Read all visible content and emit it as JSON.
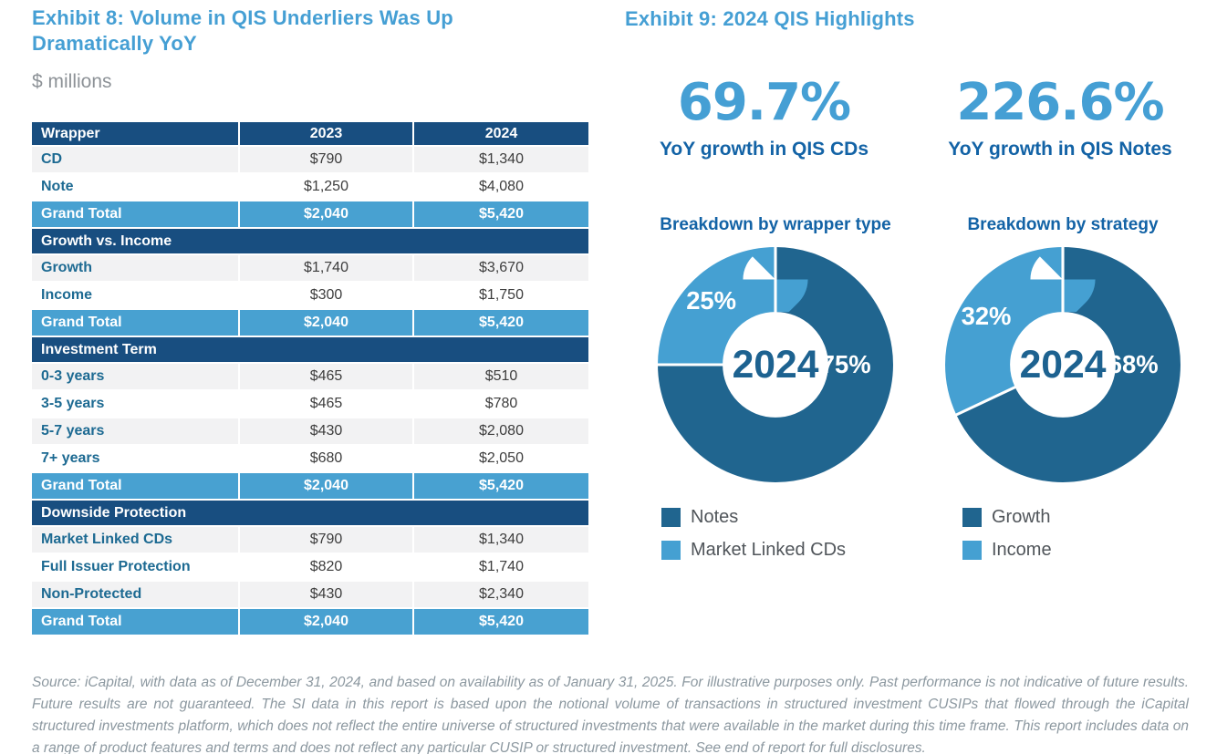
{
  "exhibit8": {
    "title": "Exhibit 8: Volume in QIS Underliers Was Up Dramatically YoY",
    "subtitle": "$ millions"
  },
  "exhibit9": {
    "title": "Exhibit 9: 2024 QIS Highlights",
    "stats": [
      {
        "value": "69.7%",
        "label": "YoY growth in QIS CDs"
      },
      {
        "value": "226.6%",
        "label": "YoY growth in QIS Notes"
      }
    ]
  },
  "chart_data": [
    {
      "type": "table",
      "title": "Exhibit 8: Volume in QIS Underliers Was Up Dramatically YoY",
      "unit": "$ millions",
      "columns": [
        "Wrapper",
        "2023",
        "2024"
      ],
      "sections": [
        {
          "name": null,
          "rows": [
            [
              "CD",
              "$790",
              "$1,340"
            ],
            [
              "Note",
              "$1,250",
              "$4,080"
            ]
          ],
          "total": [
            "Grand Total",
            "$2,040",
            "$5,420"
          ]
        },
        {
          "name": "Growth vs. Income",
          "rows": [
            [
              "Growth",
              "$1,740",
              "$3,670"
            ],
            [
              "Income",
              "$300",
              "$1,750"
            ]
          ],
          "total": [
            "Grand Total",
            "$2,040",
            "$5,420"
          ]
        },
        {
          "name": "Investment Term",
          "rows": [
            [
              "0-3 years",
              "$465",
              "$510"
            ],
            [
              "3-5 years",
              "$465",
              "$780"
            ],
            [
              "5-7 years",
              "$430",
              "$2,080"
            ],
            [
              "7+ years",
              "$680",
              "$2,050"
            ]
          ],
          "total": [
            "Grand Total",
            "$2,040",
            "$5,420"
          ]
        },
        {
          "name": "Downside Protection",
          "rows": [
            [
              "Market Linked CDs",
              "$790",
              "$1,340"
            ],
            [
              "Full Issuer Protection",
              "$820",
              "$1,740"
            ],
            [
              "Non-Protected",
              "$430",
              "$2,340"
            ]
          ],
          "total": [
            "Grand Total",
            "$2,040",
            "$5,420"
          ]
        }
      ]
    },
    {
      "type": "pie",
      "donut": true,
      "title": "Breakdown by wrapper type",
      "center_label": "2024",
      "slices": [
        {
          "label": "Notes",
          "value": 75,
          "display": "75%",
          "color": "#20658f"
        },
        {
          "label": "Market Linked CDs",
          "value": 25,
          "display": "25%",
          "color": "#45a0d2"
        }
      ],
      "legend_position": "bottom-left"
    },
    {
      "type": "pie",
      "donut": true,
      "title": "Breakdown by strategy",
      "center_label": "2024",
      "slices": [
        {
          "label": "Growth",
          "value": 68,
          "display": "68%",
          "color": "#20658f"
        },
        {
          "label": "Income",
          "value": 32,
          "display": "32%",
          "color": "#45a0d2"
        }
      ],
      "legend_position": "bottom-left"
    }
  ],
  "colors": {
    "accent_light_blue": "#45a0d2",
    "accent_dark_navy": "#184e80",
    "accent_medium_blue": "#48a1d1",
    "heading_blue": "#459fd4",
    "label_blue": "#1363a6",
    "row_label_blue": "#1d6a92"
  },
  "footer": {
    "text": "Source: iCapital, with data as of December 31, 2024, and based on availability as of January 31, 2025. For illustrative purposes only. Past performance is not indicative of future results. Future results are not guaranteed. The SI data in this report is based upon the notional volume of transactions in structured investment CUSIPs that flowed through the iCapital structured investments platform, which does not reflect the entire universe of structured investments that were available in the market during this time frame. This report includes data on a range of product features and terms and does not reflect any particular CUSIP or structured investment. See end of report for full disclosures."
  }
}
